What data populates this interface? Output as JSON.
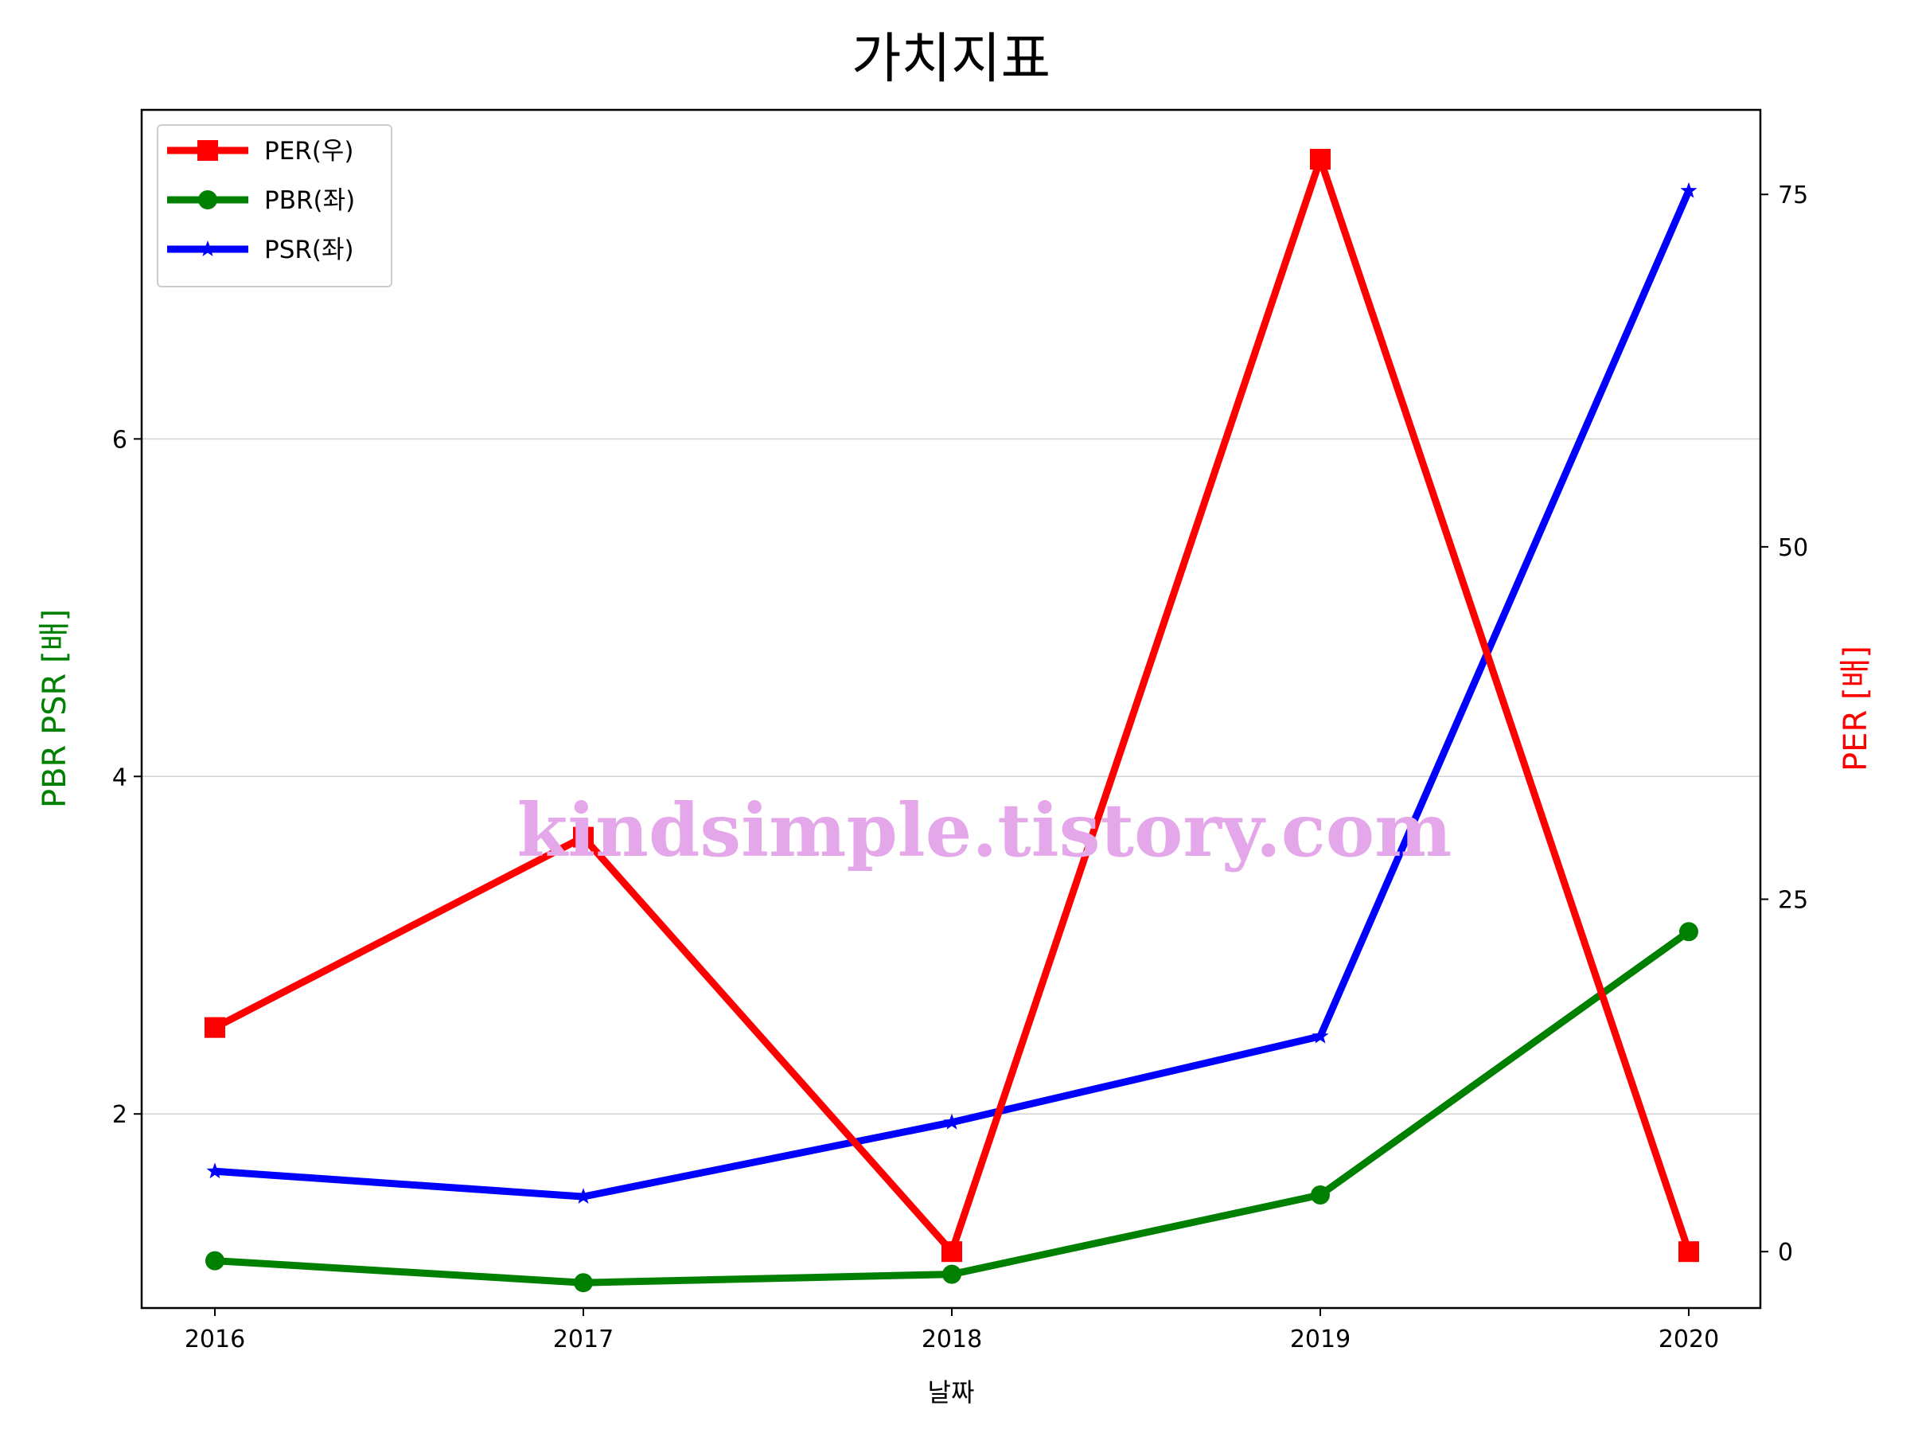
{
  "chart_data": {
    "type": "line",
    "title": "가치지표",
    "xlabel": "날짜",
    "ylabel_left": "PBR PSR [배]",
    "ylabel_right": "PER [배]",
    "categories": [
      "2016",
      "2017",
      "2018",
      "2019",
      "2020"
    ],
    "y_left": {
      "ticks": [
        "2",
        "4",
        "6"
      ],
      "ylim": [
        0.85,
        7.95
      ]
    },
    "y_right": {
      "ticks": [
        "0",
        "25",
        "50",
        "75"
      ],
      "ylim": [
        -4,
        81
      ]
    },
    "grid": "horizontal",
    "legend_position": "upper-left",
    "series": [
      {
        "name": "PER(우)",
        "axis": "right",
        "color": "#ff0000",
        "marker": "square",
        "values": [
          15.9,
          29.4,
          0.0,
          77.5,
          0.0
        ]
      },
      {
        "name": "PBR(좌)",
        "axis": "left",
        "color": "#008000",
        "marker": "circle",
        "values": [
          1.13,
          1.0,
          1.05,
          1.52,
          3.08
        ]
      },
      {
        "name": "PSR(좌)",
        "axis": "left",
        "color": "#0000ff",
        "marker": "star",
        "values": [
          1.66,
          1.51,
          1.95,
          2.46,
          7.47
        ]
      }
    ],
    "watermark": "kindsimple.tistory.com",
    "label_colors": {
      "ylabel_left": "#008000",
      "ylabel_right": "#ff0000"
    }
  }
}
